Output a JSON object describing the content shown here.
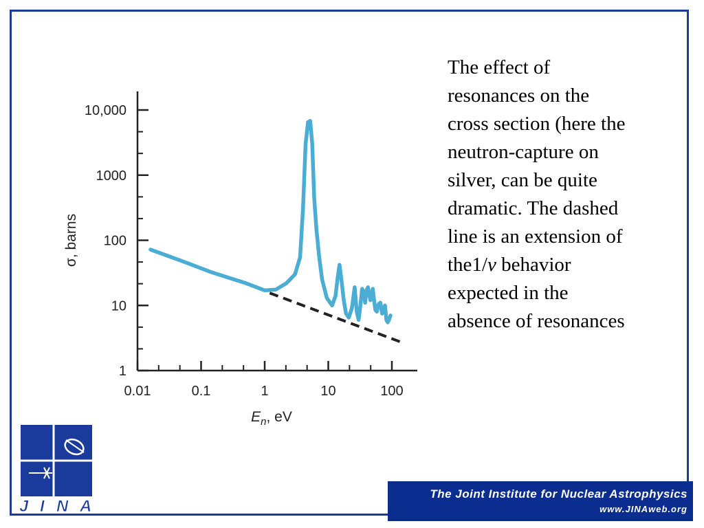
{
  "chart_data": {
    "type": "line",
    "title": "",
    "xlabel_var": "E",
    "xlabel_sub": "n",
    "xlabel_unit": ", eV",
    "ylabel": "σ, barns",
    "x_scale": "log",
    "y_scale": "log",
    "xlim": [
      0.01,
      150
    ],
    "ylim": [
      1,
      20000
    ],
    "x_ticks": [
      {
        "value": 0.01,
        "label": "0.01"
      },
      {
        "value": 0.1,
        "label": "0.1"
      },
      {
        "value": 1,
        "label": "1"
      },
      {
        "value": 10,
        "label": "10"
      },
      {
        "value": 100,
        "label": "100"
      }
    ],
    "y_ticks": [
      {
        "value": 1,
        "label": "1"
      },
      {
        "value": 10,
        "label": "10"
      },
      {
        "value": 100,
        "label": "100"
      },
      {
        "value": 1000,
        "label": "1000"
      },
      {
        "value": 10000,
        "label": "10,000"
      }
    ],
    "grid": false,
    "series": [
      {
        "style": "solid",
        "color": "#4bacd4",
        "x": [
          0.016,
          0.05,
          0.15,
          0.5,
          0.8,
          1.0,
          1.5,
          2.2,
          3.0,
          3.6,
          4.0,
          4.4,
          4.8,
          5.2,
          5.6,
          6.0,
          6.5,
          7.2,
          8.0,
          9.5,
          11.5,
          13.0,
          14.0,
          15.0,
          16.0,
          17.5,
          19.0,
          21.0,
          23.5,
          26.0,
          28.0,
          30.0,
          32.0,
          34.0,
          36.0,
          38.0,
          40.0,
          42.0,
          44.0,
          46.0,
          48.0,
          50.0,
          52.0,
          55.0,
          58.0,
          62.0,
          66.0,
          70.0,
          74.0,
          78.0,
          82.0,
          86.0,
          90.0,
          95.0
        ],
        "y": [
          72,
          48,
          32,
          22,
          18.5,
          17,
          17.5,
          22,
          30,
          55,
          300,
          3000,
          6500,
          6800,
          3000,
          450,
          150,
          55,
          25,
          13,
          10,
          14,
          26,
          42,
          26,
          12,
          7.5,
          6.5,
          9,
          19,
          8,
          6,
          10,
          18,
          16,
          11,
          17,
          19,
          15,
          12,
          14,
          18,
          13,
          8.5,
          8,
          10.5,
          11,
          7.5,
          9,
          10,
          6,
          5.5,
          6,
          7
        ]
      },
      {
        "style": "dashed",
        "color": "#222222",
        "x": [
          1.2,
          160
        ],
        "y": [
          15.5,
          2.6
        ]
      }
    ]
  },
  "description": {
    "line1": "The effect of",
    "line2": "resonances on the",
    "line3": "cross section (here the",
    "line4": "neutron-capture on",
    "line5": "silver, can be quite",
    "line6": "dramatic.  The dashed",
    "line7": "line is an extension of",
    "line8_pre": "the1/",
    "line8_var": "v",
    "line8_post": " behavior",
    "line9": "expected in the",
    "line10": "absence of resonances"
  },
  "logo": {
    "letters": [
      "J",
      "I",
      "N",
      "A"
    ],
    "color": "#1a3a9c"
  },
  "banner": {
    "title": "The Joint Institute for Nuclear Astrophysics",
    "url": "www.JINAweb.org",
    "background": "#0b2d8f"
  }
}
